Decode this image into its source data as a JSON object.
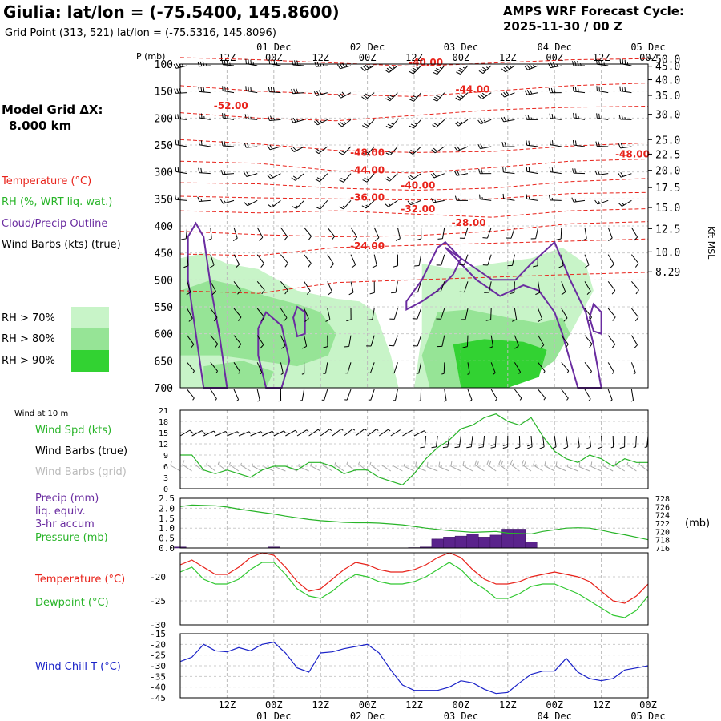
{
  "header": {
    "title": "Giulia:  lat/lon = (-75.5400, 145.8600)",
    "subtitle": "Grid Point (313, 521) lat/lon = (-75.5316, 145.8096)",
    "cycle_line1": "AMPS WRF Forecast Cycle:",
    "cycle_line2": "2025-11-30 / 00  Z"
  },
  "time_axis": {
    "hour_labels": [
      "12Z",
      "00Z",
      "12Z",
      "00Z",
      "12Z",
      "00Z",
      "12Z",
      "00Z",
      "12Z",
      "00Z"
    ],
    "date_labels": [
      "01 Dec",
      "02 Dec",
      "03 Dec",
      "04 Dec",
      "05 Dec"
    ]
  },
  "legend": {
    "grid_title": "Model Grid ΔX:",
    "grid_value": "8.000 km",
    "temperature": "Temperature (°C)",
    "rh": "RH (%, WRT liq. wat.)",
    "cloud": "Cloud/Precip Outline",
    "wind": "Wind Barbs (kts) (true)",
    "rh70": "RH > 70%",
    "rh80": "RH > 80%",
    "rh90": "RH > 90%",
    "colors": {
      "temperature": "#e8221a",
      "rh70": "#c8f4c8",
      "rh80": "#96e496",
      "rh90": "#32d232",
      "cloud": "#6a2ca0",
      "wind": "#000000"
    }
  },
  "chart_data": [
    {
      "type": "heatmap",
      "panel": "time-height cross-section",
      "y_axis_label": "P (mb)",
      "pressure_ticks": [
        100,
        150,
        200,
        250,
        300,
        350,
        400,
        450,
        500,
        550,
        600,
        650,
        700
      ],
      "height_axis_label": "Kft MSL",
      "height_ticks": [
        "50.0",
        "45.0",
        "40.0",
        "35.0",
        "30.0",
        "25.0",
        "22.5",
        "20.0",
        "17.5",
        "15.0",
        "12.5",
        "10.0",
        "8.29"
      ],
      "height_tick_pressures": [
        90,
        104,
        129,
        158,
        193,
        240,
        267,
        297,
        329,
        366,
        405,
        448,
        485
      ],
      "temperature_contour_labels": [
        {
          "label": "-40.00",
          "t": 63,
          "p": 97
        },
        {
          "label": "-44.00",
          "t": 75,
          "p": 147
        },
        {
          "label": "-52.00",
          "t": 13,
          "p": 177
        },
        {
          "label": "-48.00",
          "t": 48,
          "p": 264
        },
        {
          "label": "-48.00",
          "t": 116,
          "p": 267
        },
        {
          "label": "-44.00",
          "t": 48,
          "p": 297
        },
        {
          "label": "-40.00",
          "t": 61,
          "p": 325
        },
        {
          "label": "-36.00",
          "t": 48,
          "p": 347
        },
        {
          "label": "-32.00",
          "t": 61,
          "p": 369
        },
        {
          "label": "-28.00",
          "t": 74,
          "p": 394
        },
        {
          "label": "-24.00",
          "t": 48,
          "p": 437
        }
      ],
      "wind_speed_profile_kts": {
        "p": [
          100,
          150,
          200,
          250,
          300,
          350,
          400,
          450,
          500,
          550,
          600,
          650,
          700
        ],
        "spd": [
          35,
          30,
          25,
          22,
          18,
          15,
          12,
          10,
          10,
          8,
          8,
          6,
          6
        ]
      }
    },
    {
      "type": "line",
      "panel": "surface wind at 10 m",
      "panel_title": "Wind at 10 m",
      "label_speed": "Wind Spd (kts)",
      "label_barbs_true": "Wind Barbs (true)",
      "label_barbs_grid": "Wind Barbs (grid)",
      "ylim": [
        0,
        21
      ],
      "yticks": [
        0,
        3,
        6,
        9,
        12,
        15,
        18,
        21
      ],
      "x_hours_from_cycle": [
        0,
        3,
        6,
        9,
        12,
        15,
        18,
        21,
        24,
        27,
        30,
        33,
        36,
        39,
        42,
        45,
        48,
        51,
        54,
        57,
        60,
        63,
        66,
        69,
        72,
        75,
        78,
        81,
        84,
        87,
        90,
        93,
        96,
        99,
        102,
        105,
        108,
        111,
        114,
        117,
        120
      ],
      "series": [
        {
          "values": [
            9,
            9,
            5,
            4,
            5,
            4,
            3,
            5,
            6,
            6,
            5,
            7,
            7,
            6,
            4,
            5,
            5,
            3,
            2,
            1,
            4,
            8,
            11,
            13,
            16,
            17,
            19,
            20,
            18,
            17,
            19,
            14,
            10,
            8,
            7,
            9,
            8,
            6,
            8,
            7,
            7
          ]
        }
      ]
    },
    {
      "type": "bar",
      "panel": "precipitation and pressure",
      "label_precip_1": "Precip (mm)",
      "label_precip_2": "liq. equiv.",
      "label_precip_3": "3-hr accum",
      "label_pressure": "Pressure (mb)",
      "pressure_unit": "(mb)",
      "precip_ylim": [
        0,
        2.5
      ],
      "precip_yticks": [
        "0.0",
        "0.5",
        "1.0",
        "1.5",
        "2.0",
        "2.5"
      ],
      "pressure_ylim": [
        716,
        728
      ],
      "pressure_yticks": [
        "716",
        "718",
        "720",
        "722",
        "724",
        "726",
        "728"
      ],
      "precip_mm": [
        0.05,
        0,
        0,
        0,
        0,
        0,
        0,
        0,
        0.05,
        0,
        0,
        0,
        0,
        0,
        0,
        0,
        0,
        0,
        0,
        0,
        0.02,
        0.05,
        0.45,
        0.55,
        0.6,
        0.7,
        0.55,
        0.65,
        0.95,
        0.95,
        0.3,
        0,
        0,
        0,
        0,
        0,
        0,
        0,
        0,
        0,
        0
      ],
      "pressure_mb": [
        726.0,
        726.4,
        726.3,
        726.2,
        725.9,
        725.4,
        725.0,
        724.6,
        724.2,
        723.7,
        723.3,
        722.9,
        722.6,
        722.4,
        722.2,
        722.1,
        722.1,
        722.0,
        721.8,
        721.6,
        721.2,
        720.8,
        720.5,
        720.2,
        720.0,
        719.8,
        719.9,
        720.0,
        719.6,
        719.5,
        719.4,
        720.0,
        720.4,
        720.8,
        720.9,
        720.8,
        720.3,
        719.7,
        719.2,
        718.6,
        718.0
      ]
    },
    {
      "type": "line",
      "panel": "temperature and dewpoint",
      "label_temperature": "Temperature (°C)",
      "label_dewpoint": "Dewpoint (°C)",
      "ylim": [
        -30,
        -15
      ],
      "yticks": [
        "-20",
        "-25",
        "-30"
      ],
      "series": [
        {
          "name": "Temperature (°C)",
          "color": "#e8221a",
          "values": [
            -17.5,
            -16.5,
            -18,
            -19.5,
            -19.5,
            -18,
            -16,
            -15,
            -15.5,
            -18,
            -21,
            -23,
            -22.5,
            -20.5,
            -18.5,
            -17,
            -17.5,
            -18.5,
            -19,
            -19,
            -18.5,
            -17.5,
            -16,
            -15,
            -16,
            -18.5,
            -20.5,
            -21.5,
            -21.5,
            -21,
            -20,
            -19.5,
            -19,
            -19.5,
            -20,
            -21,
            -23,
            -25,
            -25.5,
            -24,
            -21.5
          ]
        },
        {
          "name": "Dewpoint (°C)",
          "color": "#32c832",
          "values": [
            -19,
            -18,
            -20.5,
            -21.5,
            -21.5,
            -20.5,
            -18.5,
            -17,
            -17,
            -19.5,
            -22.5,
            -24,
            -24.5,
            -23,
            -21,
            -19.5,
            -20,
            -21,
            -21.5,
            -21.5,
            -21,
            -20,
            -18.5,
            -17,
            -18.5,
            -21,
            -22.5,
            -24.5,
            -24.5,
            -23.5,
            -22,
            -21.5,
            -21.5,
            -22.5,
            -23.5,
            -25,
            -26.5,
            -28,
            -28.5,
            -27,
            -24
          ]
        }
      ]
    },
    {
      "type": "line",
      "panel": "wind chill",
      "label_windchill": "Wind Chill T (°C)",
      "ylim": [
        -45,
        -15
      ],
      "yticks": [
        "-15",
        "-20",
        "-25",
        "-30",
        "-35",
        "-40",
        "-45"
      ],
      "series": [
        {
          "name": "Wind Chill T (°C)",
          "color": "#1a22c8",
          "values": [
            -28,
            -26,
            -20,
            -23,
            -23.5,
            -21.5,
            -23,
            -20,
            -19,
            -24,
            -31,
            -33,
            -24,
            -23.5,
            -22,
            -21,
            -20,
            -24,
            -32,
            -39,
            -41.5,
            -41.5,
            -41.5,
            -40,
            -37,
            -38,
            -41,
            -43,
            -42.5,
            -38,
            -34,
            -32.5,
            -32.5,
            -26.5,
            -33,
            -36,
            -37,
            -36,
            -32,
            -31,
            -30
          ]
        }
      ]
    }
  ]
}
